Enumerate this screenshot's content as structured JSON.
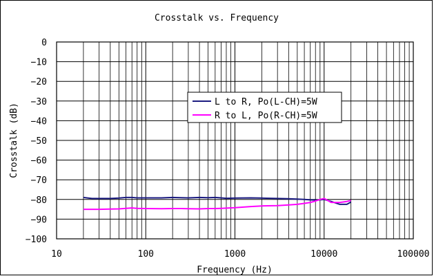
{
  "chart_data": {
    "type": "line",
    "title": "Crosstalk vs. Frequency",
    "xlabel": "Frequency (Hz)",
    "ylabel": "Crosstalk (dB)",
    "x_scale": "log",
    "xlim": [
      10,
      100000
    ],
    "ylim": [
      -100,
      0
    ],
    "x_ticks": [
      "10",
      "100",
      "1000",
      "10000",
      "100000"
    ],
    "y_ticks": [
      "0",
      "-10",
      "-20",
      "-30",
      "-40",
      "-50",
      "-60",
      "-70",
      "-80",
      "-90",
      "-100"
    ],
    "grid": true,
    "legend_position": "center",
    "x": [
      20,
      25,
      30,
      40,
      50,
      60,
      70,
      80,
      100,
      150,
      200,
      250,
      300,
      400,
      500,
      600,
      700,
      800,
      1000,
      1500,
      2000,
      3000,
      4000,
      5000,
      6000,
      7000,
      8000,
      9000,
      10000,
      12000,
      15000,
      18000,
      20000
    ],
    "series": [
      {
        "name": "L to R, Po(L-CH)=5W",
        "color": "#1a1a80",
        "values": [
          -79,
          -79.5,
          -79.5,
          -79.5,
          -79.3,
          -79,
          -79,
          -79.2,
          -79.2,
          -79.2,
          -79,
          -79.1,
          -79.2,
          -79,
          -79.1,
          -79,
          -79.2,
          -79.4,
          -79.3,
          -79.2,
          -79.3,
          -79.5,
          -79.6,
          -79.8,
          -80,
          -80.2,
          -80.3,
          -80.2,
          -80,
          -81,
          -82.5,
          -82.5,
          -81.3
        ]
      },
      {
        "name": "R to L, Po(R-CH)=5W",
        "color": "#ff00ff",
        "values": [
          -85,
          -85,
          -85,
          -84.9,
          -84.8,
          -84.5,
          -84.3,
          -84.5,
          -84.6,
          -84.7,
          -84.6,
          -84.6,
          -84.7,
          -84.8,
          -84.6,
          -84.6,
          -84.5,
          -84.4,
          -84.2,
          -83.6,
          -83.3,
          -83.1,
          -82.8,
          -82.5,
          -82,
          -81.5,
          -80.8,
          -80,
          -79.5,
          -81.5,
          -81.5,
          -81,
          -80.5
        ]
      }
    ]
  }
}
